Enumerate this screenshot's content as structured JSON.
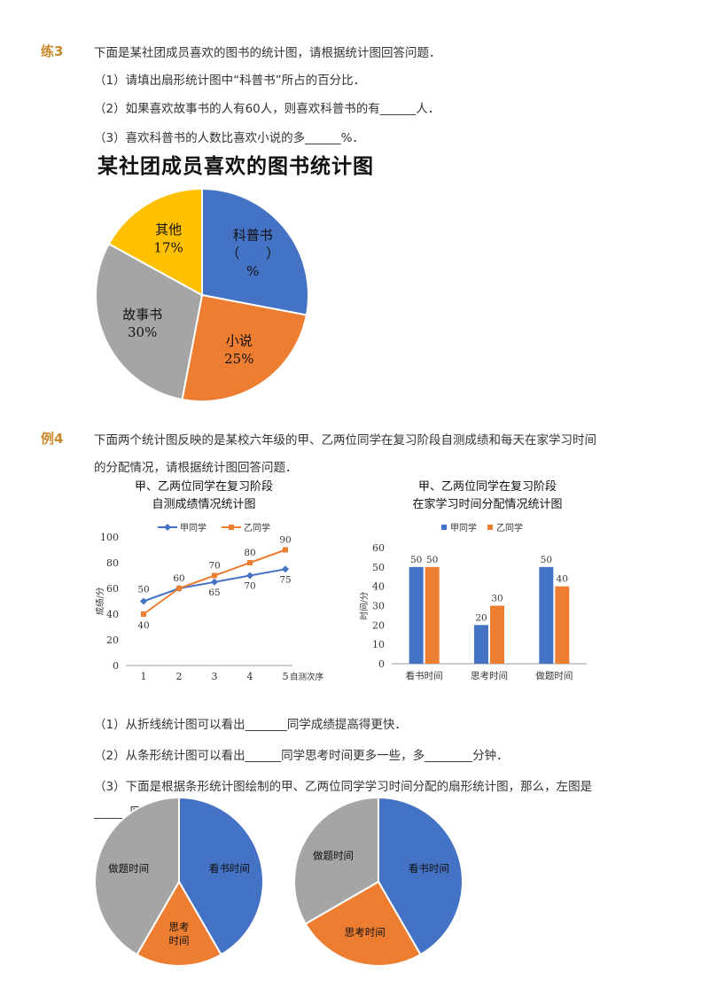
{
  "ex3": {
    "tag": "练3",
    "intro": "下面是某社团成员喜欢的图书的统计图，请根据统计图回答问题．",
    "q1": "（1）请填出扇形统计图中“科普书”所占的百分比．",
    "q2": "（2）如果喜欢故事书的人有60人，则喜欢科普书的有______人．",
    "q3": "（3）喜欢科普书的人数比喜欢小说的多______%．"
  },
  "ex4": {
    "tag": "例4",
    "intro_line1": "下面两个统计图反映的是某校六年级的甲、乙两位同学在复习阶段自测成绩和每天在家学习时间",
    "intro_line2": "的分配情况，请根据统计图回答问题．",
    "q1": "（1）从折线统计图可以看出_______同学成绩提高得更快．",
    "q2": "（2）从条形统计图可以看出______同学思考时间更多一些，多________分钟．",
    "q3_line1": "（3）下面是根据条形统计图绘制的甲、乙两位同学学习时间分配的扇形统计图，那么，左图是",
    "q3_line2": "______同学的．"
  },
  "colors": {
    "blue": "#4472c4",
    "orange": "#ed7d31",
    "gray": "#a5a5a5",
    "yellow": "#ffc000",
    "tag": "#c8892a"
  },
  "chart_data": [
    {
      "type": "pie",
      "title": "某社团成员喜欢的图书统计图",
      "slices": [
        {
          "label": "科普书",
          "label_line2": "（　　）",
          "label_line3": "%",
          "value": 28,
          "color": "#4472c4"
        },
        {
          "label": "小说",
          "label_line2": "25%",
          "value": 25,
          "color": "#ed7d31"
        },
        {
          "label": "故事书",
          "label_line2": "30%",
          "value": 30,
          "color": "#a5a5a5"
        },
        {
          "label": "其他",
          "label_line2": "17%",
          "value": 17,
          "color": "#ffc000"
        }
      ]
    },
    {
      "type": "line",
      "title_line1": "甲、乙两位同学在复习阶段",
      "title_line2": "自测成绩情况统计图",
      "xlabel": "自测次序",
      "ylabel": "成绩/分",
      "x": [
        1,
        2,
        3,
        4,
        5
      ],
      "ylim": [
        0,
        100
      ],
      "yticks": [
        0,
        20,
        40,
        60,
        80,
        100
      ],
      "legend": "top",
      "series": [
        {
          "name": "甲同学",
          "values": [
            50,
            60,
            65,
            70,
            75
          ],
          "color": "#4472c4",
          "labels": [
            "50",
            "",
            "65",
            "70",
            "75"
          ]
        },
        {
          "name": "乙同学",
          "values": [
            40,
            60,
            70,
            80,
            90
          ],
          "color": "#ed7d31",
          "labels": [
            "40",
            "60",
            "70",
            "80",
            "90"
          ]
        }
      ]
    },
    {
      "type": "bar",
      "title_line1": "甲、乙两位同学在复习阶段",
      "title_line2": "在家学习时间分配情况统计图",
      "ylabel": "时间/分",
      "categories": [
        "看书时间",
        "思考时间",
        "做题时间"
      ],
      "ylim": [
        0,
        60
      ],
      "yticks": [
        0,
        10,
        20,
        30,
        40,
        50,
        60
      ],
      "legend": "top",
      "series": [
        {
          "name": "甲同学",
          "values": [
            50,
            20,
            50
          ],
          "color": "#4472c4"
        },
        {
          "name": "乙同学",
          "values": [
            50,
            30,
            40
          ],
          "color": "#ed7d31"
        }
      ]
    },
    {
      "type": "pie",
      "slices": [
        {
          "label": "看书时间",
          "value": 50,
          "color": "#4472c4"
        },
        {
          "label": "思考",
          "label_line2": "时间",
          "value": 20,
          "color": "#ed7d31"
        },
        {
          "label": "做题时间",
          "value": 50,
          "color": "#a5a5a5"
        }
      ]
    },
    {
      "type": "pie",
      "slices": [
        {
          "label": "看书时间",
          "value": 50,
          "color": "#4472c4"
        },
        {
          "label": "思考时间",
          "value": 30,
          "color": "#ed7d31"
        },
        {
          "label": "做题时间",
          "value": 40,
          "color": "#a5a5a5"
        }
      ]
    }
  ]
}
